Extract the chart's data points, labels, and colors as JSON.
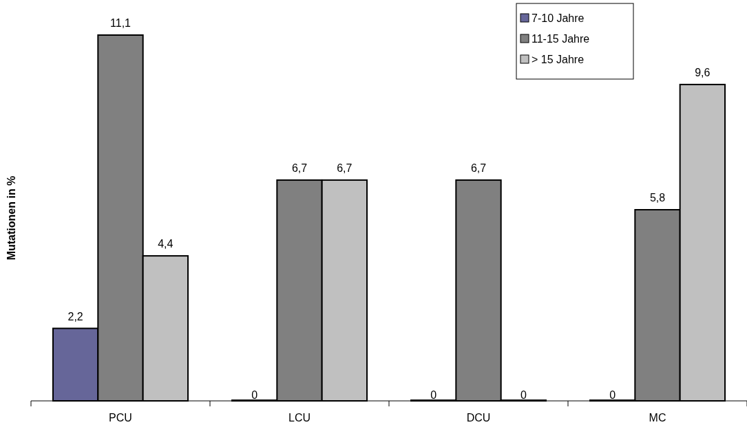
{
  "chart_data": {
    "type": "bar",
    "ylabel": "Mutationen in %",
    "categories": [
      "PCU",
      "LCU",
      "DCU",
      "MC"
    ],
    "legend": "top right",
    "series": [
      {
        "name": "7-10 Jahre",
        "color": "#666699",
        "values": [
          2.2,
          0,
          0,
          0
        ],
        "value_labels": [
          "2,2",
          "0",
          "0",
          "0"
        ]
      },
      {
        "name": "11-15 Jahre",
        "color": "#808080",
        "values": [
          11.1,
          6.7,
          6.7,
          5.8
        ],
        "value_labels": [
          "11,1",
          "6,7",
          "6,7",
          "5,8"
        ]
      },
      {
        "name": "> 15 Jahre",
        "color": "#c0c0c0",
        "values": [
          4.4,
          6.7,
          0,
          9.6
        ],
        "value_labels": [
          "4,4",
          "6,7",
          "0",
          "9,6"
        ]
      }
    ]
  }
}
